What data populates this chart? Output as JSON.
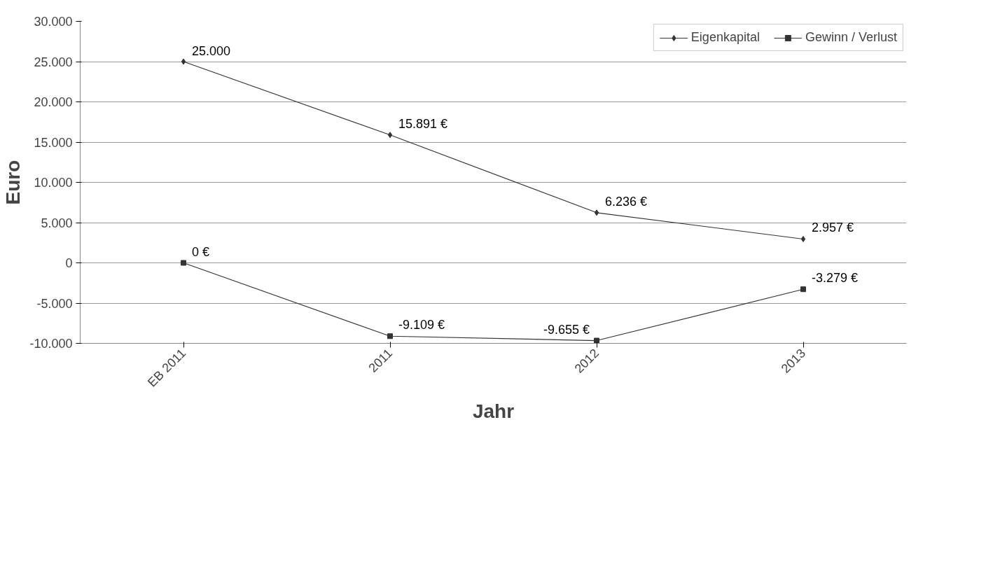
{
  "chart_data": {
    "type": "line",
    "xlabel": "Jahr",
    "ylabel": "Euro",
    "categories": [
      "EB 2011",
      "2011",
      "2012",
      "2013"
    ],
    "series": [
      {
        "name": "Eigenkapital",
        "color": "#333333",
        "marker": "diamond",
        "values": [
          25000,
          15891,
          6236,
          2957
        ],
        "value_labels": [
          "25.000",
          "15.891 €",
          "6.236 €",
          "2.957 €"
        ]
      },
      {
        "name": "Gewinn / Verlust",
        "color": "#333333",
        "marker": "square",
        "values": [
          0,
          -9109,
          -9655,
          -3279
        ],
        "value_labels": [
          "0 €",
          "-9.109 €",
          "-9.655 €",
          "-3.279 €"
        ]
      }
    ],
    "ylim": [
      -10000,
      30000
    ],
    "yticks": [
      {
        "value": -10000,
        "label": "-10.000"
      },
      {
        "value": -5000,
        "label": "-5.000"
      },
      {
        "value": 0,
        "label": "0"
      },
      {
        "value": 5000,
        "label": "5.000"
      },
      {
        "value": 10000,
        "label": "10.000"
      },
      {
        "value": 15000,
        "label": "15.000"
      },
      {
        "value": 20000,
        "label": "20.000"
      },
      {
        "value": 25000,
        "label": "25.000"
      },
      {
        "value": 30000,
        "label": "30.000"
      }
    ],
    "grid": "y",
    "legend": "top right",
    "line_style": "solid"
  }
}
